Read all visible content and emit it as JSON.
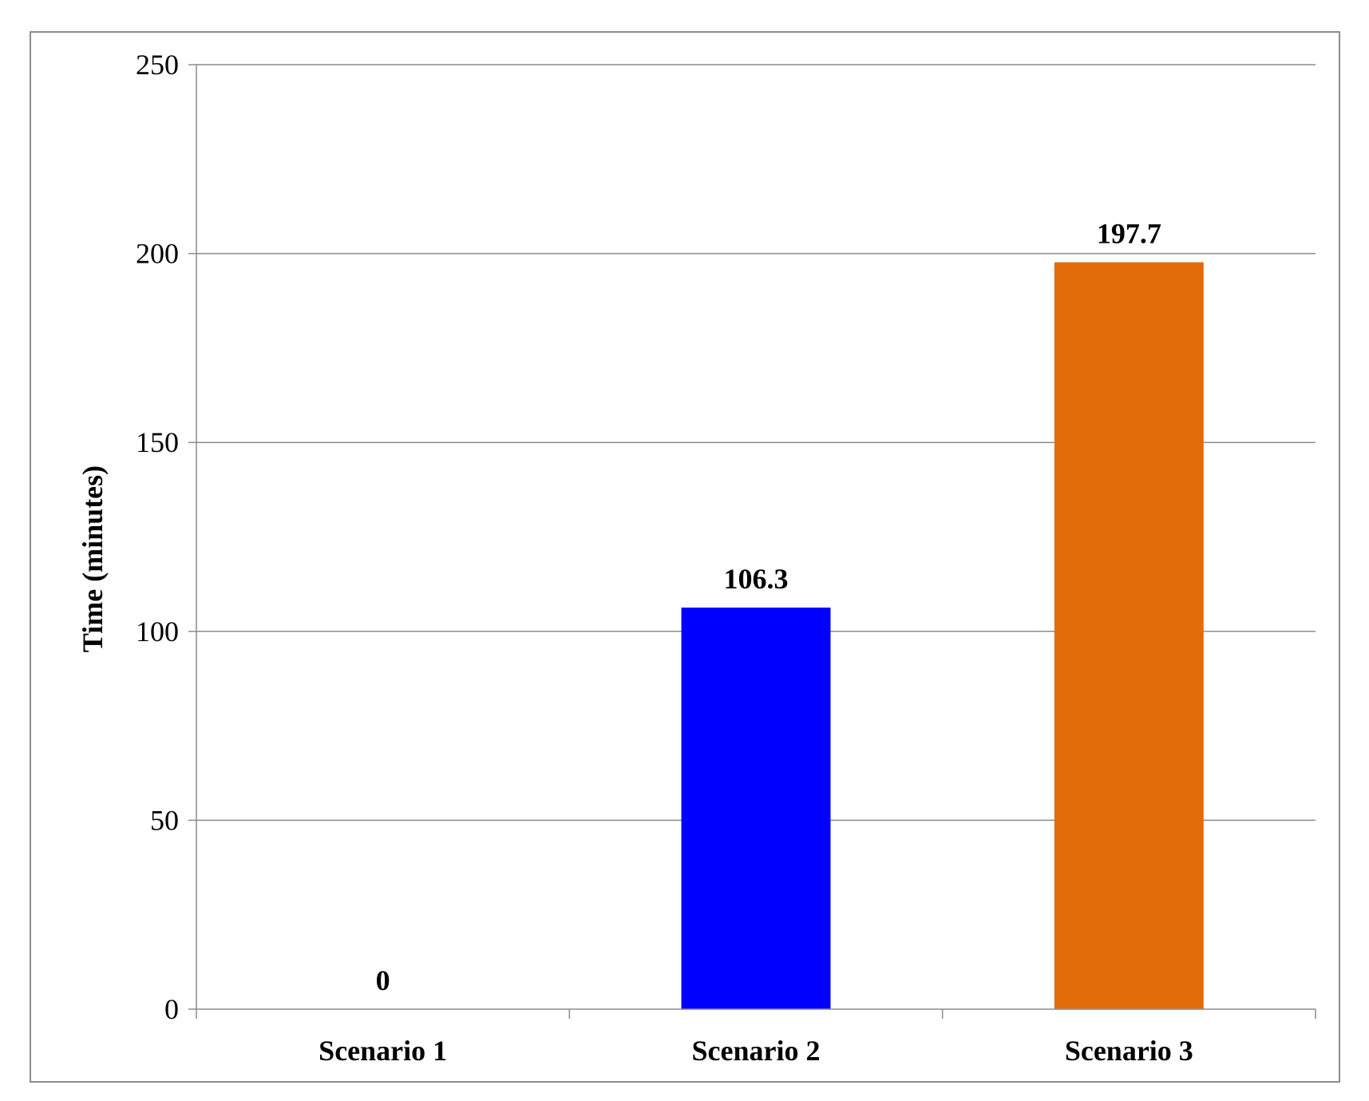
{
  "chart_data": {
    "type": "bar",
    "title": "",
    "xlabel": "",
    "ylabel": "Time (minutes)",
    "categories": [
      "Scenario 1",
      "Scenario 2",
      "Scenario 3"
    ],
    "values": [
      0,
      106.3,
      197.7
    ],
    "data_labels": [
      "0",
      "106.3",
      "197.7"
    ],
    "bar_colors": [
      "#1a1aff",
      "#0000ff",
      "#e36c0a"
    ],
    "ylim": [
      0,
      250
    ],
    "yticks": [
      0,
      50,
      100,
      150,
      200,
      250
    ],
    "ytick_labels": [
      "0",
      "50",
      "100",
      "150",
      "200",
      "250"
    ],
    "grid": true,
    "legend": "none"
  }
}
